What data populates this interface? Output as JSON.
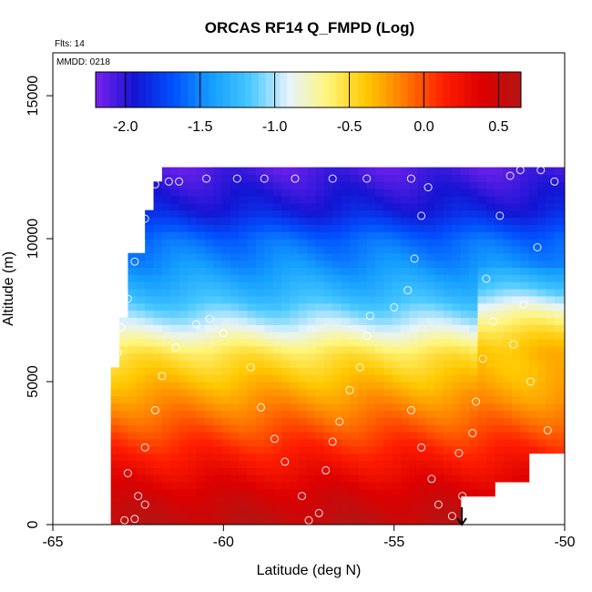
{
  "chart_data": {
    "type": "heatmap",
    "title": "ORCAS RF14 Q_FMPD (Log)",
    "xlabel": "Latitude (deg N)",
    "ylabel": "Altitude (m)",
    "xlim": [
      -65,
      -50
    ],
    "ylim": [
      0,
      16500
    ],
    "x_ticks": [
      -65,
      -60,
      -55,
      -50
    ],
    "x_tick_labels": [
      "-65",
      "-60",
      "-55",
      "-50"
    ],
    "y_ticks": [
      0,
      5000,
      10000,
      15000
    ],
    "y_tick_labels": [
      "0",
      "5000",
      "10000",
      "15000"
    ],
    "annotations": {
      "flights": "Flts: 14",
      "date": "MMDD: 0218"
    },
    "colorbar": {
      "range": [
        -2.2,
        0.65
      ],
      "ticks": [
        -2.0,
        -1.5,
        -1.0,
        -0.5,
        0.0,
        0.5
      ],
      "tick_labels": [
        "-2.0",
        "-1.5",
        "-1.0",
        "-0.5",
        "0.0",
        "0.5"
      ],
      "colors": [
        "#7a22ee",
        "#1414d2",
        "#0050ff",
        "#149eff",
        "#48c8ff",
        "#e6f4ff",
        "#fff57a",
        "#ffc800",
        "#ff7800",
        "#ff1e00",
        "#dc0000",
        "#b41414"
      ]
    },
    "field_profile": {
      "altitude_m": [
        0,
        1000,
        2000,
        3000,
        4000,
        5000,
        6000,
        7000,
        8000,
        9000,
        10000,
        11000,
        12500
      ],
      "log_q": [
        0.6,
        0.45,
        0.25,
        0.05,
        -0.15,
        -0.35,
        -0.55,
        -0.95,
        -1.25,
        -1.45,
        -1.6,
        -1.9,
        -2.1
      ]
    },
    "flight_track": [
      [
        -62.9,
        150
      ],
      [
        -62.6,
        200
      ],
      [
        -62.3,
        700
      ],
      [
        -62.5,
        1000
      ],
      [
        -62.8,
        1800
      ],
      [
        -62.3,
        2700
      ],
      [
        -62.0,
        4000
      ],
      [
        -61.8,
        5200
      ],
      [
        -61.4,
        6200
      ],
      [
        -60.8,
        7000
      ],
      [
        -60.4,
        7200
      ],
      [
        -60.0,
        6700
      ],
      [
        -59.2,
        5500
      ],
      [
        -58.9,
        4100
      ],
      [
        -58.5,
        3000
      ],
      [
        -58.2,
        2200
      ],
      [
        -57.7,
        1000
      ],
      [
        -57.2,
        400
      ],
      [
        -57.5,
        150
      ],
      [
        -57.0,
        1900
      ],
      [
        -56.8,
        2900
      ],
      [
        -56.6,
        3600
      ],
      [
        -56.3,
        4700
      ],
      [
        -56.0,
        5500
      ],
      [
        -55.8,
        6600
      ],
      [
        -55.7,
        7300
      ],
      [
        -55.0,
        7600
      ],
      [
        -54.6,
        8200
      ],
      [
        -54.4,
        9300
      ],
      [
        -54.2,
        10800
      ],
      [
        -54.0,
        11800
      ],
      [
        -54.5,
        12100
      ],
      [
        -55.8,
        12100
      ],
      [
        -56.8,
        12100
      ],
      [
        -57.9,
        12100
      ],
      [
        -58.8,
        12100
      ],
      [
        -59.6,
        12100
      ],
      [
        -60.5,
        12100
      ],
      [
        -61.3,
        12000
      ],
      [
        -61.6,
        12000
      ],
      [
        -62.0,
        11900
      ],
      [
        -62.3,
        10700
      ],
      [
        -62.6,
        9200
      ],
      [
        -62.8,
        7900
      ],
      [
        -63.0,
        6900
      ],
      [
        -63.1,
        6000
      ],
      [
        -54.5,
        4000
      ],
      [
        -54.2,
        2700
      ],
      [
        -53.9,
        1600
      ],
      [
        -53.7,
        700
      ],
      [
        -53.3,
        300
      ],
      [
        -53.0,
        1000
      ],
      [
        -53.1,
        2500
      ],
      [
        -52.7,
        3200
      ],
      [
        -52.6,
        4300
      ],
      [
        -52.4,
        5800
      ],
      [
        -52.1,
        7100
      ],
      [
        -52.3,
        8600
      ],
      [
        -51.9,
        10800
      ],
      [
        -51.6,
        12200
      ],
      [
        -51.3,
        12400
      ],
      [
        -50.7,
        12400
      ],
      [
        -50.3,
        12000
      ],
      [
        -50.8,
        9700
      ],
      [
        -51.2,
        7700
      ],
      [
        -51.5,
        6300
      ],
      [
        -51.0,
        5000
      ],
      [
        -50.5,
        3300
      ],
      [
        -50.1,
        2200
      ]
    ]
  }
}
